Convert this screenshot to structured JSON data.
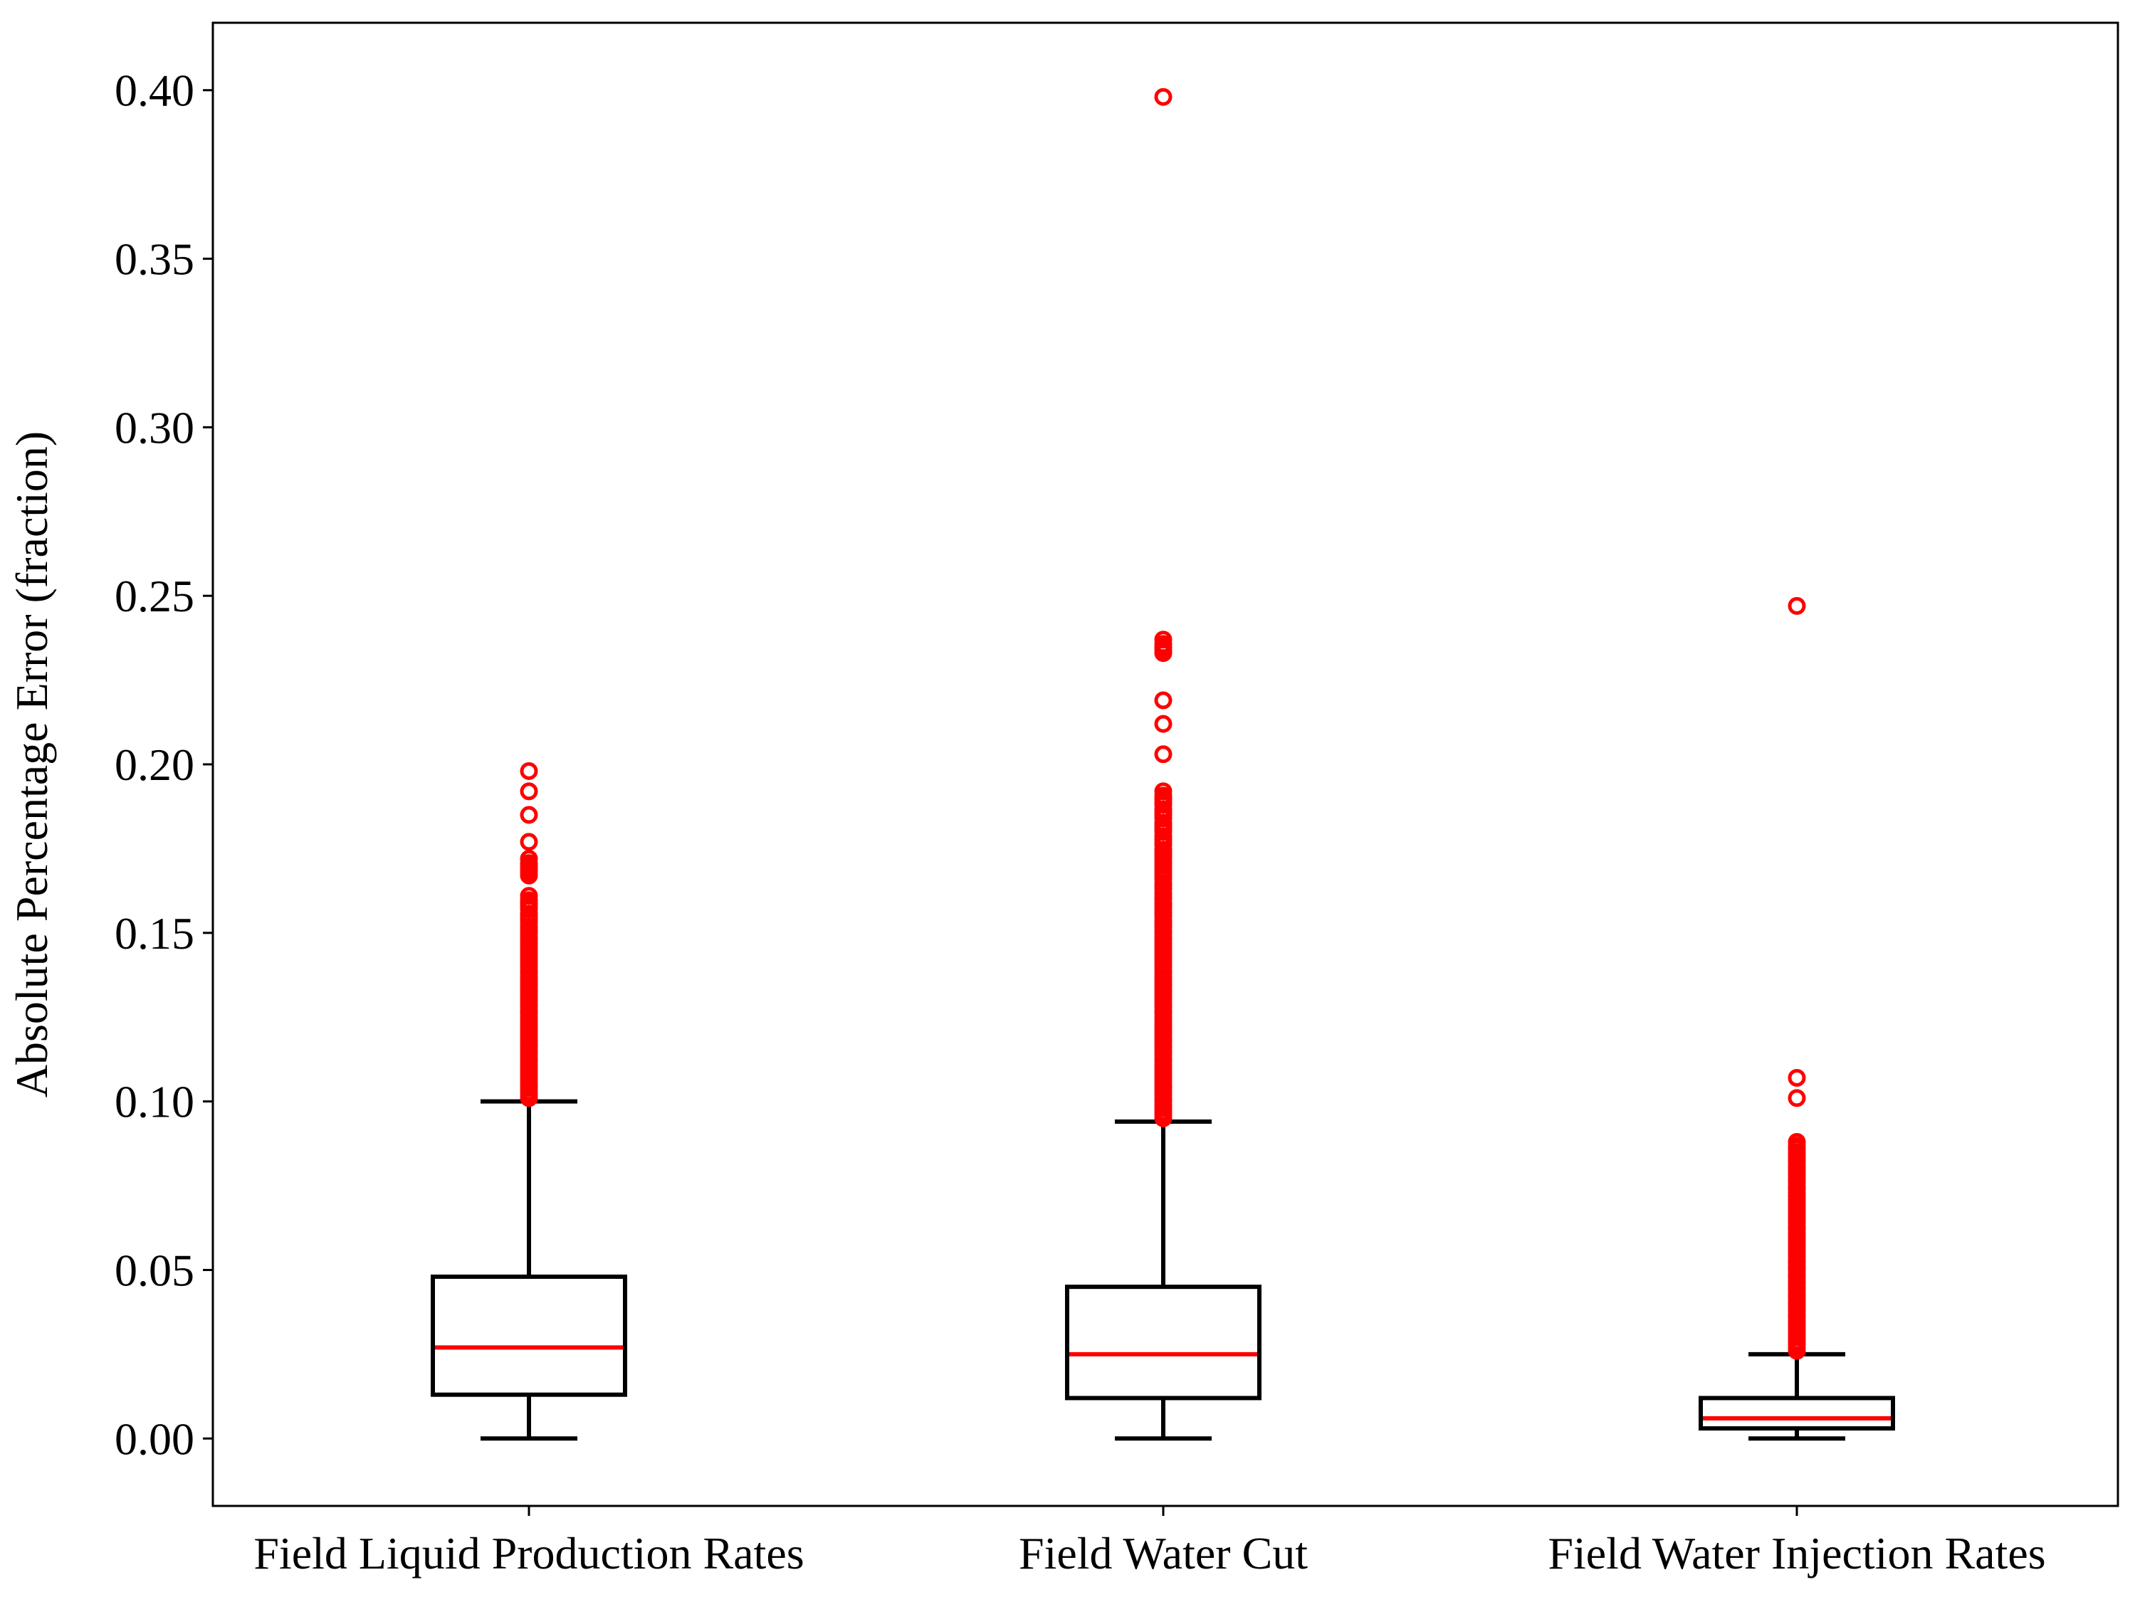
{
  "chart_data": {
    "type": "box",
    "title": "",
    "xlabel": "",
    "ylabel": "Absolute Percentage Error (fraction)",
    "ylim": [
      -0.02,
      0.42
    ],
    "yticks": [
      0.0,
      0.05,
      0.1,
      0.15,
      0.2,
      0.25,
      0.3,
      0.35,
      0.4
    ],
    "ytick_labels": [
      "0.00",
      "0.05",
      "0.10",
      "0.15",
      "0.20",
      "0.25",
      "0.30",
      "0.35",
      "0.40"
    ],
    "categories": [
      "Field Liquid Production Rates",
      "Field Water Cut",
      "Field Water Injection Rates"
    ],
    "box_color": "#000000",
    "median_color": "#ff0000",
    "flier_color": "#ff0000",
    "boxes": [
      {
        "name": "Field Liquid Production Rates",
        "whisker_low": 0.0,
        "q1": 0.013,
        "median": 0.027,
        "q3": 0.048,
        "whisker_high": 0.1,
        "fliers": [
          0.198,
          0.192,
          0.185,
          0.177,
          0.172,
          0.168,
          0.167,
          0.161,
          0.157,
          0.153,
          0.15,
          0.148,
          0.146,
          0.144,
          0.142,
          0.14,
          0.138,
          0.136,
          0.134,
          0.132,
          0.13,
          0.128,
          0.126,
          0.124,
          0.122,
          0.12,
          0.118,
          0.116,
          0.114,
          0.112,
          0.11,
          0.108,
          0.106,
          0.104,
          0.102,
          0.101
        ]
      },
      {
        "name": "Field Water Cut",
        "whisker_low": 0.0,
        "q1": 0.012,
        "median": 0.025,
        "q3": 0.045,
        "whisker_high": 0.094,
        "fliers": [
          0.398,
          0.237,
          0.233,
          0.219,
          0.212,
          0.203,
          0.192,
          0.188,
          0.184,
          0.18,
          0.176,
          0.172,
          0.17,
          0.168,
          0.166,
          0.163,
          0.16,
          0.157,
          0.155,
          0.152,
          0.15,
          0.148,
          0.146,
          0.144,
          0.142,
          0.14,
          0.138,
          0.136,
          0.134,
          0.132,
          0.13,
          0.128,
          0.126,
          0.124,
          0.122,
          0.12,
          0.118,
          0.116,
          0.114,
          0.112,
          0.11,
          0.108,
          0.106,
          0.104,
          0.102,
          0.1,
          0.098,
          0.096,
          0.095
        ]
      },
      {
        "name": "Field Water Injection Rates",
        "whisker_low": 0.0,
        "q1": 0.003,
        "median": 0.006,
        "q3": 0.012,
        "whisker_high": 0.025,
        "fliers": [
          0.247,
          0.107,
          0.101,
          0.088,
          0.086,
          0.084,
          0.082,
          0.08,
          0.078,
          0.076,
          0.074,
          0.072,
          0.07,
          0.068,
          0.066,
          0.064,
          0.062,
          0.06,
          0.058,
          0.056,
          0.054,
          0.052,
          0.05,
          0.048,
          0.046,
          0.044,
          0.042,
          0.04,
          0.038,
          0.036,
          0.034,
          0.032,
          0.03,
          0.028,
          0.026
        ]
      }
    ]
  }
}
